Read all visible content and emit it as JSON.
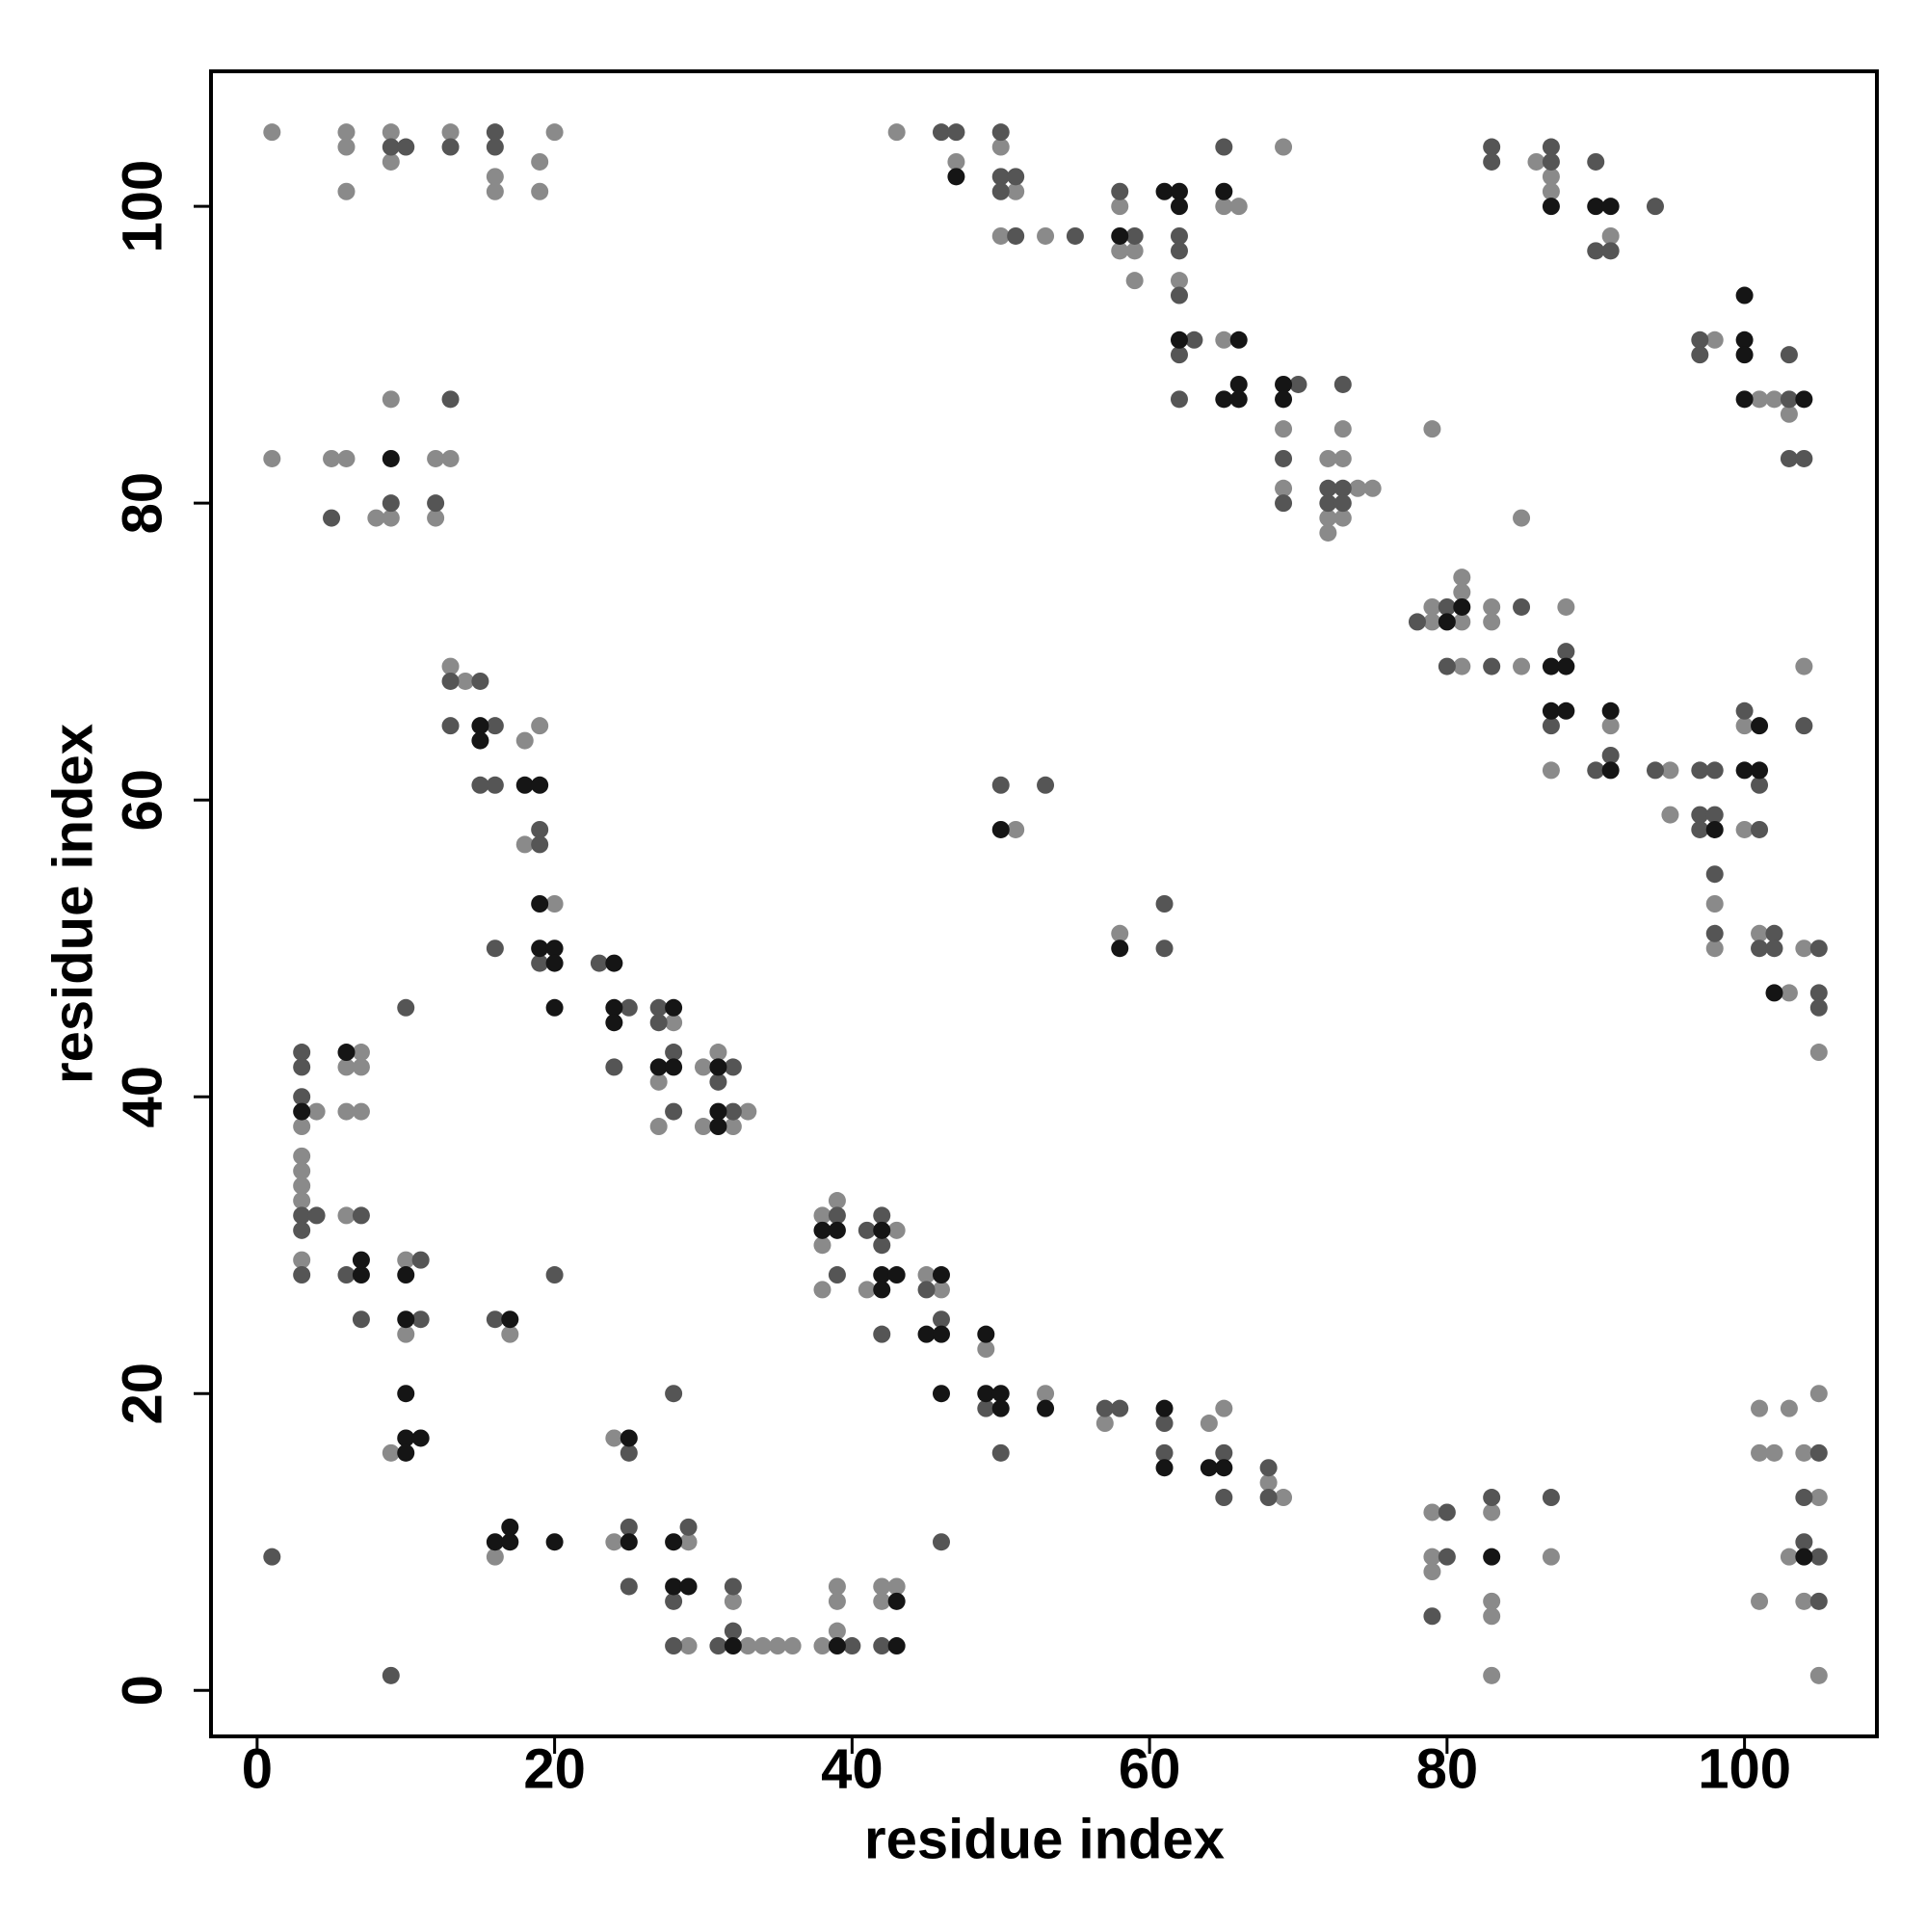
{
  "chart_data": {
    "type": "scatter",
    "x_label": "residue index",
    "y_label": "residue index",
    "xlim": [
      -3.1,
      108.9
    ],
    "ylim": [
      -3.1,
      109.1
    ],
    "xticks": [
      0,
      20,
      40,
      60,
      80,
      100
    ],
    "yticks": [
      0,
      20,
      40,
      60,
      80,
      100
    ],
    "series": [
      {
        "color": "#8a8a8a",
        "x": [
          1,
          6,
          6,
          6,
          9,
          9,
          13,
          16,
          16,
          19,
          19,
          20,
          1,
          5,
          6,
          12,
          13,
          9,
          8,
          9,
          12,
          43,
          47,
          50,
          51,
          50,
          53,
          58,
          58,
          59,
          59,
          62,
          65,
          66,
          65,
          69,
          69,
          69,
          72,
          73,
          73,
          72,
          73,
          72,
          74,
          75,
          79,
          86,
          87,
          87,
          91,
          98,
          101,
          102,
          103,
          79,
          79,
          81,
          81,
          81,
          81,
          83,
          83,
          85,
          85,
          88,
          87,
          91,
          95,
          95,
          98,
          98,
          100,
          100,
          104,
          101,
          104,
          103,
          105,
          51,
          58,
          13,
          14,
          18,
          19,
          18,
          20,
          28,
          27,
          27,
          30,
          31,
          33,
          30,
          32,
          3,
          4,
          3,
          3,
          3,
          3,
          3,
          7,
          6,
          7,
          6,
          7,
          6,
          10,
          10,
          9,
          17,
          16,
          24,
          24,
          29,
          29,
          32,
          33,
          34,
          35,
          36,
          38,
          39,
          39,
          39,
          42,
          43,
          42,
          38,
          39,
          38,
          38,
          43,
          41,
          45,
          46,
          49,
          53,
          57,
          64,
          65,
          68,
          69,
          79,
          79,
          79,
          83,
          83,
          83,
          83,
          87,
          101,
          103,
          105,
          101,
          102,
          104,
          105,
          103,
          101,
          104,
          105
        ],
        "values": [
          105,
          105,
          104,
          101,
          105,
          103,
          105,
          102,
          101,
          103,
          101,
          105,
          83,
          83,
          83,
          83,
          83,
          87,
          79,
          79,
          79,
          105,
          103,
          104,
          101,
          98,
          98,
          100,
          97,
          97,
          95,
          95,
          100,
          100,
          91,
          104,
          85,
          81,
          83,
          83,
          85,
          79,
          79,
          78,
          81,
          81,
          85,
          103,
          102,
          101,
          98,
          91,
          87,
          87,
          86,
          73,
          72,
          75,
          74,
          72,
          69,
          73,
          72,
          79,
          69,
          73,
          62,
          65,
          62,
          59,
          53,
          50,
          65,
          58,
          69,
          51,
          50,
          47,
          43,
          58,
          51,
          69,
          68,
          64,
          65,
          57,
          53,
          45,
          41,
          38,
          42,
          43,
          39,
          38,
          38,
          38,
          39,
          36,
          35,
          34,
          33,
          29,
          43,
          42,
          42,
          39,
          39,
          32,
          29,
          24,
          16,
          24,
          9,
          17,
          10,
          10,
          3,
          6,
          3,
          3,
          3,
          3,
          3,
          4,
          6,
          7,
          7,
          7,
          6,
          32,
          33,
          30,
          27,
          31,
          27,
          28,
          27,
          23,
          20,
          18,
          18,
          19,
          14,
          13,
          12,
          9,
          8,
          12,
          6,
          5,
          1,
          9,
          19,
          19,
          20,
          16,
          16,
          16,
          13,
          9,
          6,
          6,
          1
        ]
      },
      {
        "color": "#555555",
        "x": [
          9,
          10,
          13,
          16,
          16,
          13,
          5,
          9,
          12,
          46,
          47,
          50,
          50,
          50,
          51,
          51,
          55,
          58,
          59,
          62,
          62,
          62,
          63,
          62,
          62,
          65,
          70,
          69,
          69,
          73,
          72,
          73,
          72,
          73,
          83,
          83,
          87,
          87,
          90,
          90,
          91,
          94,
          97,
          97,
          103,
          103,
          103,
          104,
          78,
          80,
          80,
          83,
          85,
          88,
          87,
          91,
          90,
          94,
          97,
          98,
          97,
          98,
          97,
          98,
          98,
          100,
          101,
          101,
          104,
          102,
          101,
          102,
          105,
          105,
          105,
          50,
          53,
          61,
          61,
          13,
          15,
          13,
          16,
          15,
          16,
          19,
          19,
          16,
          19,
          10,
          23,
          25,
          24,
          27,
          27,
          28,
          28,
          32,
          31,
          32,
          3,
          3,
          3,
          3,
          3,
          4,
          3,
          7,
          6,
          7,
          11,
          11,
          16,
          20,
          1,
          9,
          25,
          25,
          25,
          28,
          29,
          28,
          28,
          32,
          32,
          31,
          40,
          39,
          39,
          41,
          42,
          42,
          42,
          45,
          46,
          46,
          49,
          50,
          57,
          58,
          61,
          61,
          65,
          65,
          68,
          68,
          80,
          80,
          79,
          83,
          87,
          105,
          104,
          105,
          104,
          105,
          42
        ],
        "values": [
          104,
          104,
          104,
          105,
          104,
          87,
          79,
          80,
          80,
          105,
          105,
          105,
          102,
          101,
          102,
          98,
          98,
          101,
          98,
          98,
          97,
          94,
          91,
          90,
          87,
          104,
          88,
          83,
          80,
          88,
          81,
          81,
          80,
          80,
          104,
          103,
          104,
          103,
          103,
          97,
          97,
          100,
          91,
          90,
          87,
          90,
          83,
          83,
          72,
          73,
          69,
          69,
          73,
          70,
          65,
          63,
          62,
          62,
          62,
          62,
          59,
          59,
          58,
          55,
          51,
          66,
          61,
          58,
          65,
          51,
          50,
          50,
          50,
          47,
          46,
          61,
          61,
          53,
          50,
          68,
          68,
          65,
          65,
          61,
          61,
          58,
          57,
          50,
          49,
          46,
          49,
          46,
          42,
          46,
          45,
          43,
          39,
          42,
          41,
          39,
          43,
          42,
          40,
          32,
          31,
          32,
          28,
          32,
          28,
          25,
          29,
          25,
          25,
          28,
          9,
          1,
          16,
          11,
          7,
          20,
          11,
          6,
          3,
          7,
          4,
          3,
          3,
          32,
          28,
          31,
          32,
          30,
          24,
          27,
          25,
          10,
          19,
          16,
          19,
          19,
          18,
          16,
          16,
          13,
          15,
          13,
          12,
          9,
          5,
          13,
          13,
          16,
          13,
          9,
          10,
          6,
          3
        ]
      },
      {
        "color": "#151515",
        "x": [
          9,
          47,
          58,
          61,
          62,
          62,
          62,
          65,
          66,
          65,
          66,
          66,
          69,
          69,
          87,
          90,
          91,
          100,
          100,
          100,
          100,
          104,
          80,
          81,
          87,
          88,
          87,
          88,
          91,
          91,
          98,
          101,
          100,
          101,
          102,
          50,
          58,
          15,
          15,
          18,
          19,
          19,
          19,
          20,
          20,
          20,
          24,
          24,
          24,
          28,
          27,
          28,
          31,
          31,
          31,
          3,
          6,
          7,
          7,
          10,
          10,
          10,
          10,
          11,
          10,
          17,
          16,
          17,
          17,
          20,
          25,
          25,
          28,
          28,
          29,
          32,
          39,
          43,
          43,
          38,
          39,
          42,
          42,
          43,
          42,
          46,
          45,
          46,
          46,
          49,
          49,
          50,
          50,
          53,
          61,
          61,
          64,
          65,
          104,
          83
        ],
        "values": [
          83,
          102,
          98,
          101,
          101,
          100,
          91,
          101,
          91,
          87,
          88,
          87,
          88,
          87,
          100,
          100,
          100,
          94,
          91,
          90,
          87,
          87,
          72,
          73,
          69,
          69,
          66,
          66,
          66,
          62,
          58,
          65,
          62,
          62,
          47,
          58,
          50,
          65,
          64,
          61,
          61,
          53,
          50,
          50,
          49,
          46,
          49,
          46,
          45,
          46,
          42,
          42,
          42,
          39,
          38,
          39,
          43,
          28,
          29,
          28,
          25,
          20,
          17,
          17,
          16,
          25,
          10,
          10,
          11,
          10,
          17,
          10,
          10,
          7,
          7,
          3,
          3,
          6,
          3,
          31,
          31,
          31,
          28,
          28,
          27,
          28,
          24,
          24,
          20,
          24,
          20,
          20,
          19,
          19,
          19,
          15,
          15,
          15,
          9,
          9
        ]
      }
    ]
  }
}
